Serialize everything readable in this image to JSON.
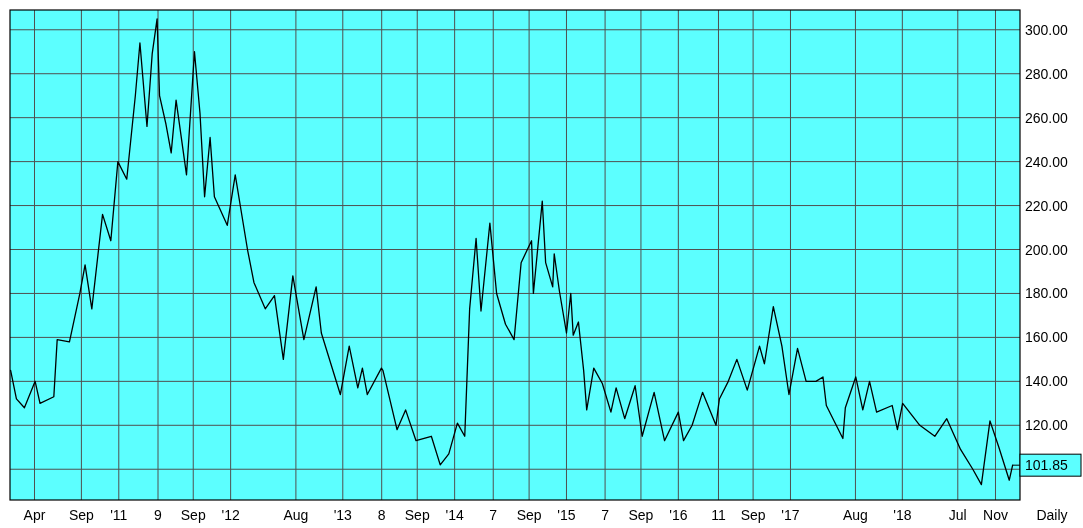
{
  "chart_data": {
    "type": "line",
    "xlabel": "Daily",
    "x": [
      "2010-01-13",
      "2010-02-01",
      "2010-02-27",
      "2010-04-03",
      "2010-04-19",
      "2010-06-03",
      "2010-06-14",
      "2010-07-24",
      "2010-08-27",
      "2010-09-13",
      "2010-10-05",
      "2010-11-09",
      "2010-12-06",
      "2010-12-29",
      "2011-01-27",
      "2011-02-24",
      "2011-03-11",
      "2011-04-03",
      "2011-04-20",
      "2011-05-06",
      "2011-05-14",
      "2011-06-04",
      "2011-06-21",
      "2011-07-07",
      "2011-08-10",
      "2011-09-05",
      "2011-09-23",
      "2011-10-08",
      "2011-10-26",
      "2011-11-09",
      "2011-12-21",
      "2012-01-16",
      "2012-02-25",
      "2012-03-17",
      "2012-04-23",
      "2012-05-23",
      "2012-06-21",
      "2012-07-22",
      "2012-08-27",
      "2012-10-06",
      "2012-10-23",
      "2012-12-24",
      "2013-01-22",
      "2013-02-19",
      "2013-03-06",
      "2013-03-22",
      "2013-05-07",
      "2013-05-12",
      "2013-06-27",
      "2013-07-25",
      "2013-08-28",
      "2013-10-17",
      "2013-11-15",
      "2013-12-13",
      "2014-01-10",
      "2014-02-03",
      "2014-02-19",
      "2014-03-12",
      "2014-03-28",
      "2014-04-26",
      "2014-05-18",
      "2014-06-16",
      "2014-07-14",
      "2014-08-06",
      "2014-09-09",
      "2014-09-15",
      "2014-10-14",
      "2014-10-25",
      "2014-11-17",
      "2014-11-22",
      "2014-12-09",
      "2015-01-01",
      "2015-01-15",
      "2015-01-23",
      "2015-02-09",
      "2015-02-26",
      "2015-03-08",
      "2015-03-31",
      "2015-04-28",
      "2015-05-26",
      "2015-06-12",
      "2015-07-10",
      "2015-08-13",
      "2015-09-05",
      "2015-10-14",
      "2015-11-17",
      "2016-01-01",
      "2016-01-18",
      "2016-02-15",
      "2016-03-20",
      "2016-05-03",
      "2016-05-14",
      "2016-06-12",
      "2016-07-10",
      "2016-08-13",
      "2016-09-22",
      "2016-10-08",
      "2016-11-06",
      "2016-12-04",
      "2016-12-27",
      "2017-01-24",
      "2017-02-21",
      "2017-03-25",
      "2017-04-17",
      "2017-04-28",
      "2017-06-21",
      "2017-06-29",
      "2017-08-02",
      "2017-08-25",
      "2017-09-16",
      "2017-10-09",
      "2017-11-29",
      "2017-12-16",
      "2018-01-02",
      "2018-02-27",
      "2018-04-17",
      "2018-05-26",
      "2018-07-10",
      "2018-08-19",
      "2018-09-16",
      "2018-10-14",
      "2018-11-12",
      "2018-12-16",
      "2018-12-27"
    ],
    "series": [
      {
        "color": "#000000",
        "values": [
          145,
          132,
          128,
          140,
          130,
          133,
          159,
          158,
          180,
          193,
          173,
          216,
          204,
          240,
          232,
          270,
          294,
          256,
          289,
          305,
          270,
          257,
          244,
          268,
          234,
          290,
          262,
          224,
          251,
          224,
          211,
          234,
          200,
          185,
          173,
          179,
          150,
          188,
          159,
          183,
          162,
          134,
          156,
          137,
          146,
          134,
          146,
          145,
          118,
          127,
          113,
          115,
          102,
          107,
          121,
          115,
          173,
          205,
          172,
          212,
          180,
          166,
          159,
          194,
          204,
          180,
          222,
          194,
          183,
          198,
          181,
          162,
          180,
          161,
          167,
          145,
          127,
          146,
          139,
          126,
          137,
          123,
          138,
          115,
          135,
          113,
          126,
          113,
          120,
          135,
          120,
          132,
          140,
          150,
          136,
          156,
          148,
          174,
          156,
          134,
          155,
          140,
          140,
          142,
          129,
          114,
          128,
          142,
          127,
          140,
          126,
          129,
          118,
          130,
          120,
          115,
          123,
          109,
          100,
          93,
          122,
          110,
          95,
          101.85
        ]
      }
    ],
    "xlim": [
      "2010-01-11",
      "2019-01-20"
    ],
    "xticks": [
      {
        "value": "2010-04-01",
        "label": "Apr"
      },
      {
        "value": "2010-09-01",
        "label": "Sep"
      },
      {
        "value": "2011-01-01",
        "label": "'11"
      },
      {
        "value": "2011-05-09",
        "label": "9"
      },
      {
        "value": "2011-09-01",
        "label": "Sep"
      },
      {
        "value": "2012-01-01",
        "label": "'12"
      },
      {
        "value": "2012-08-01",
        "label": "Aug"
      },
      {
        "value": "2013-01-01",
        "label": "'13"
      },
      {
        "value": "2013-05-08",
        "label": "8"
      },
      {
        "value": "2013-09-01",
        "label": "Sep"
      },
      {
        "value": "2014-01-01",
        "label": "'14"
      },
      {
        "value": "2014-05-07",
        "label": "7"
      },
      {
        "value": "2014-09-01",
        "label": "Sep"
      },
      {
        "value": "2015-01-01",
        "label": "'15"
      },
      {
        "value": "2015-05-07",
        "label": "7"
      },
      {
        "value": "2015-09-01",
        "label": "Sep"
      },
      {
        "value": "2016-01-01",
        "label": "'16"
      },
      {
        "value": "2016-05-11",
        "label": "11"
      },
      {
        "value": "2016-09-01",
        "label": "Sep"
      },
      {
        "value": "2017-01-01",
        "label": "'17"
      },
      {
        "value": "2017-08-01",
        "label": "Aug"
      },
      {
        "value": "2018-01-01",
        "label": "'18"
      },
      {
        "value": "2018-07-01",
        "label": "Jul"
      },
      {
        "value": "2018-11-01",
        "label": "Nov"
      }
    ],
    "ylim": [
      86,
      309
    ],
    "yticks": [
      {
        "value": 100,
        "label": null
      },
      {
        "value": 120,
        "label": "120.00"
      },
      {
        "value": 140,
        "label": "140.00"
      },
      {
        "value": 160,
        "label": "160.00"
      },
      {
        "value": 180,
        "label": "180.00"
      },
      {
        "value": 200,
        "label": "200.00"
      },
      {
        "value": 220,
        "label": "220.00"
      },
      {
        "value": 240,
        "label": "240.00"
      },
      {
        "value": 260,
        "label": "260.00"
      },
      {
        "value": 280,
        "label": "280.00"
      },
      {
        "value": 300,
        "label": "300.00"
      }
    ],
    "annotations": [
      {
        "text": "101.85",
        "x": "2018-12-27",
        "y": 101.85
      }
    ],
    "grid": true,
    "marker": "none",
    "line_style": "solid"
  }
}
